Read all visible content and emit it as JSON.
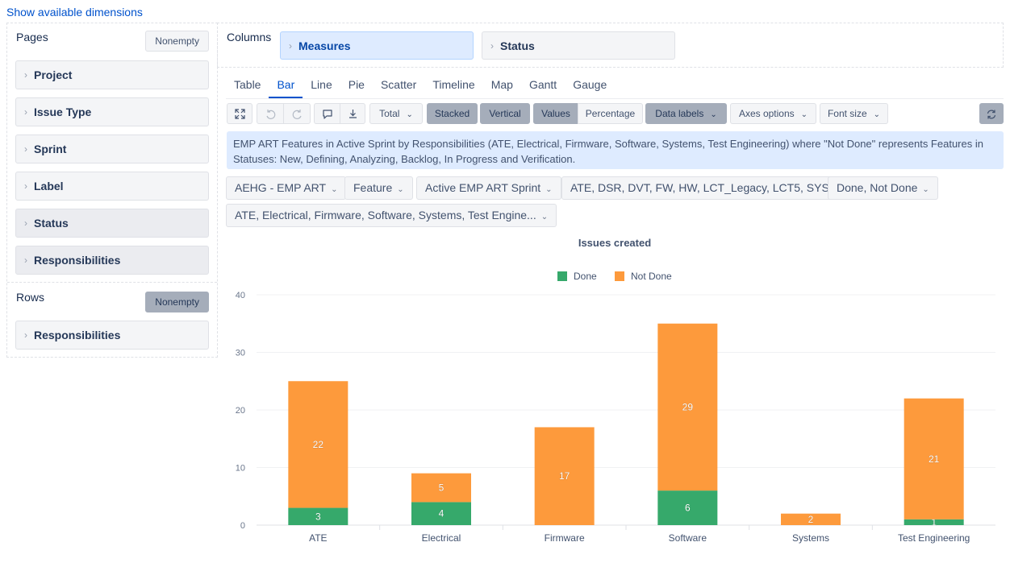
{
  "top_link": "Show available dimensions",
  "pages": {
    "heading": "Pages",
    "nonempty": "Nonempty",
    "dimensions": [
      "Project",
      "Issue Type",
      "Sprint",
      "Label",
      "Status",
      "Responsibilities"
    ]
  },
  "rows": {
    "heading": "Rows",
    "nonempty": "Nonempty",
    "dimensions": [
      "Responsibilities"
    ]
  },
  "columns": {
    "heading": "Columns",
    "dimensions": [
      "Measures",
      "Status"
    ]
  },
  "tabs": [
    "Table",
    "Bar",
    "Line",
    "Pie",
    "Scatter",
    "Timeline",
    "Map",
    "Gantt",
    "Gauge"
  ],
  "active_tab": "Bar",
  "toolbar": {
    "total": "Total",
    "stacked": "Stacked",
    "vertical": "Vertical",
    "values": "Values",
    "percentage": "Percentage",
    "data_labels": "Data labels",
    "axes_options": "Axes options",
    "font_size": "Font size"
  },
  "description": "EMP ART Features in Active Sprint by Responsibilities (ATE, Electrical, Firmware, Software, Systems, Test Engineering) where \"Not Done\" represents Features in Statuses: New, Defining, Analyzing, Backlog, In Progress and Verification.",
  "filters": [
    "AEHG - EMP ART",
    "Feature",
    "Active EMP ART Sprint",
    "ATE, DSR, DVT, FW, HW, LCT_Legacy, LCT5, SYS",
    "Done, Not Done",
    "ATE, Electrical, Firmware, Software, Systems, Test Engine..."
  ],
  "colors": {
    "done": "#36a96b",
    "not_done": "#fd9a3c",
    "accent": "#0052cc"
  },
  "chart_data": {
    "type": "bar",
    "stacked": true,
    "title": "Issues created",
    "categories": [
      "ATE",
      "Electrical",
      "Firmware",
      "Software",
      "Systems",
      "Test Engineering"
    ],
    "series": [
      {
        "name": "Done",
        "values": [
          3,
          4,
          null,
          6,
          null,
          1
        ]
      },
      {
        "name": "Not Done",
        "values": [
          22,
          5,
          17,
          29,
          2,
          21
        ]
      }
    ],
    "yticks": [
      0,
      10,
      20,
      30,
      40
    ],
    "ylim": [
      0,
      40
    ],
    "legend": "top-center",
    "grid": true
  }
}
